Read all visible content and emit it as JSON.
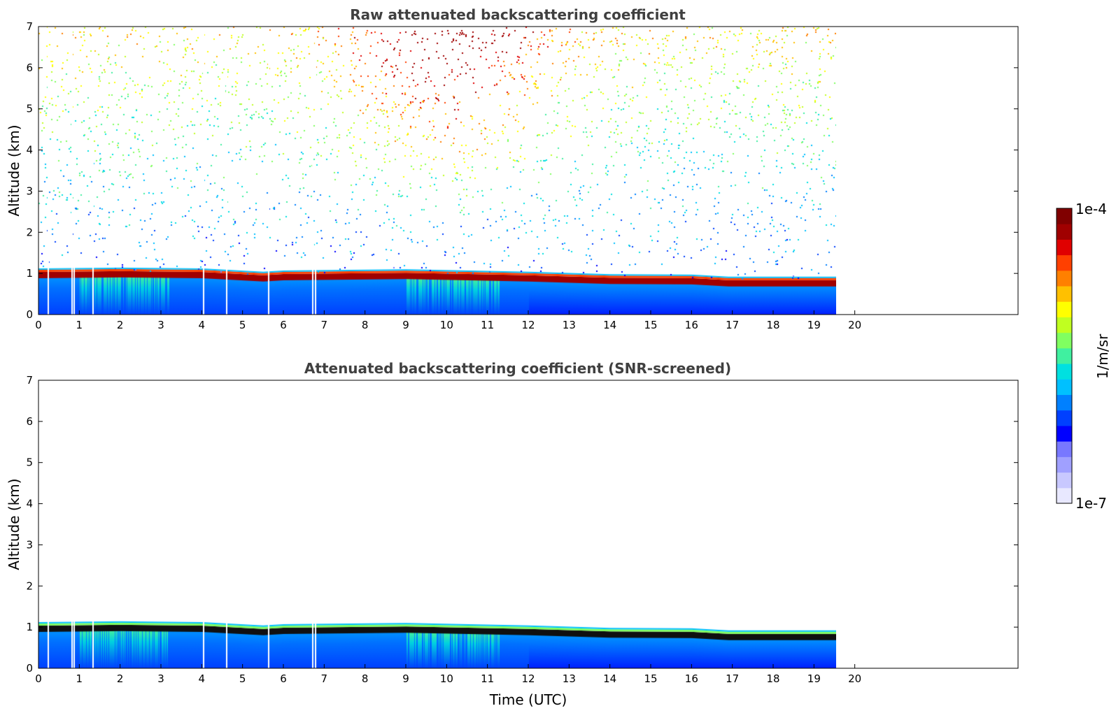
{
  "chart_data": [
    {
      "type": "heatmap",
      "title": "Raw attenuated backscattering coefficient",
      "ylabel": "Altitude (km)",
      "xlabel": "",
      "x_ticks": [
        0,
        1,
        2,
        3,
        4,
        5,
        6,
        7,
        8,
        9,
        10,
        11,
        12,
        13,
        14,
        15,
        16,
        17,
        18,
        19,
        20
      ],
      "y_ticks": [
        0,
        1,
        2,
        3,
        4,
        5,
        6,
        7
      ],
      "xlim": [
        0,
        24
      ],
      "ylim": [
        0,
        7
      ],
      "data_end_time": 19.55,
      "gap_times": [
        0.22,
        0.8,
        0.85,
        1.32,
        4.02,
        4.6,
        5.62,
        6.7,
        6.77
      ],
      "cloud_base_km": [
        [
          0,
          0.9
        ],
        [
          2,
          0.92
        ],
        [
          4,
          0.9
        ],
        [
          5.5,
          0.82
        ],
        [
          6,
          0.85
        ],
        [
          9,
          0.88
        ],
        [
          12,
          0.82
        ],
        [
          14,
          0.76
        ],
        [
          16,
          0.75
        ],
        [
          16.9,
          0.7
        ],
        [
          19.55,
          0.7
        ]
      ],
      "noise": true
    },
    {
      "type": "heatmap",
      "title": "Attenuated backscattering coefficient (SNR-screened)",
      "ylabel": "Altitude (km)",
      "xlabel": "Time (UTC)",
      "x_ticks": [
        0,
        1,
        2,
        3,
        4,
        5,
        6,
        7,
        8,
        9,
        10,
        11,
        12,
        13,
        14,
        15,
        16,
        17,
        18,
        19,
        20
      ],
      "y_ticks": [
        0,
        1,
        2,
        3,
        4,
        5,
        6,
        7
      ],
      "xlim": [
        0,
        24
      ],
      "ylim": [
        0,
        7
      ],
      "data_end_time": 19.55,
      "gap_times": [
        0.22,
        0.8,
        0.85,
        1.32,
        4.02,
        4.6,
        5.62,
        6.7,
        6.77
      ],
      "cloud_base_km": [
        [
          0,
          0.9
        ],
        [
          2,
          0.92
        ],
        [
          4,
          0.9
        ],
        [
          5.5,
          0.82
        ],
        [
          6,
          0.85
        ],
        [
          9,
          0.88
        ],
        [
          12,
          0.82
        ],
        [
          14,
          0.76
        ],
        [
          16,
          0.75
        ],
        [
          16.9,
          0.7
        ],
        [
          19.55,
          0.7
        ]
      ],
      "noise": false
    }
  ],
  "colorbar": {
    "label": "1/m/sr",
    "max_label": "1e-4",
    "min_label": "1e-7",
    "colors": [
      "#e8e8ff",
      "#c8c8ff",
      "#a0a0ff",
      "#7878ff",
      "#0000ff",
      "#0040ff",
      "#0080ff",
      "#00c0ff",
      "#00e0e0",
      "#40f0a0",
      "#80ff60",
      "#c0ff20",
      "#ffff00",
      "#ffc000",
      "#ff8000",
      "#ff4000",
      "#e00000",
      "#a00000",
      "#800000"
    ]
  }
}
